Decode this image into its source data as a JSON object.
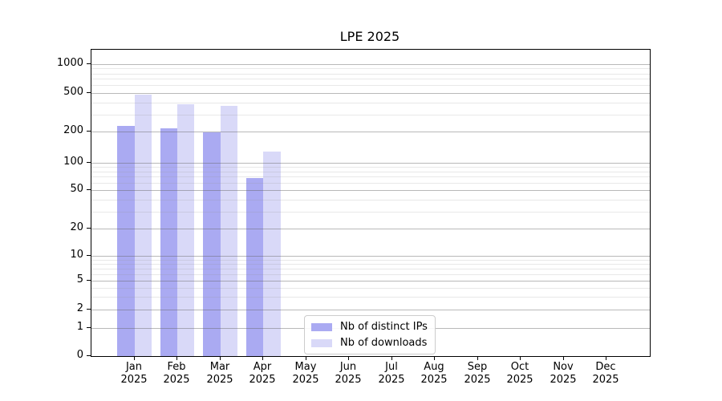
{
  "chart_data": {
    "type": "bar",
    "title": "LPE 2025",
    "categories": [
      "Jan 2025",
      "Feb 2025",
      "Mar 2025",
      "Apr 2025",
      "May 2025",
      "Jun 2025",
      "Jul 2025",
      "Aug 2025",
      "Sep 2025",
      "Oct 2025",
      "Nov 2025",
      "Dec 2025"
    ],
    "series": [
      {
        "name": "Nb of distinct IPs",
        "color": "#aaaaf2",
        "values": [
          230,
          215,
          195,
          68,
          0,
          0,
          0,
          0,
          0,
          0,
          0,
          0
        ]
      },
      {
        "name": "Nb of downloads",
        "color": "#d9d9f8",
        "values": [
          480,
          385,
          370,
          128,
          0,
          0,
          0,
          0,
          0,
          0,
          0,
          0
        ]
      }
    ],
    "y_ticks": [
      0,
      1,
      2,
      5,
      10,
      20,
      50,
      100,
      200,
      500,
      1000
    ],
    "y_minor_gridlines": [
      3,
      4,
      6,
      7,
      8,
      9,
      30,
      40,
      60,
      70,
      80,
      90,
      300,
      400,
      600,
      700,
      800,
      900
    ],
    "y_scale": "pseudo-log",
    "ylim": [
      0,
      1300
    ],
    "xlabel": "",
    "ylabel": "",
    "grid": "horizontal major and minor, drawn over bars",
    "legend_position": "lower center-left inside plot"
  }
}
